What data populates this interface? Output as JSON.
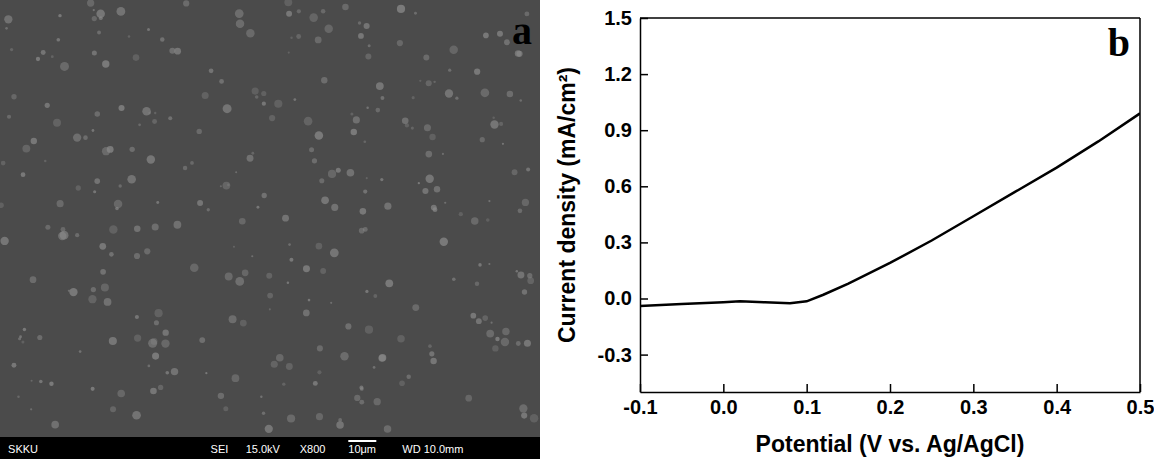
{
  "image": {
    "panel_label": "a",
    "footer": [
      "SKKU",
      "SEI",
      "15.0kV",
      "X800",
      "10μm",
      "WD 10.0mm"
    ]
  },
  "chart_data": {
    "type": "line",
    "x_label": "Potential (V vs. Ag/AgCl)",
    "y_label": "Current density (mA/cm²)",
    "annotations": [
      "b"
    ],
    "x": [
      -0.1,
      -0.05,
      0.0,
      0.02,
      0.05,
      0.08,
      0.1,
      0.12,
      0.15,
      0.2,
      0.25,
      0.3,
      0.35,
      0.4,
      0.45,
      0.5
    ],
    "values": [
      -0.04,
      -0.03,
      -0.02,
      -0.015,
      -0.02,
      -0.025,
      -0.015,
      0.02,
      0.08,
      0.19,
      0.31,
      0.44,
      0.57,
      0.7,
      0.84,
      0.99
    ],
    "color": "#000000",
    "xlim": [
      -0.1,
      0.5
    ],
    "xticks": [
      -0.1,
      {
        "value": 0,
        "label": "0.0"
      },
      0.1,
      0.2,
      0.3,
      0.4,
      0.5
    ],
    "ylim": [
      -0.5,
      1.5
    ],
    "yticks": [
      -0.3,
      {
        "value": 0,
        "label": "0.0"
      },
      0.3,
      0.6,
      0.9,
      1.2,
      1.5
    ],
    "grid": false
  }
}
